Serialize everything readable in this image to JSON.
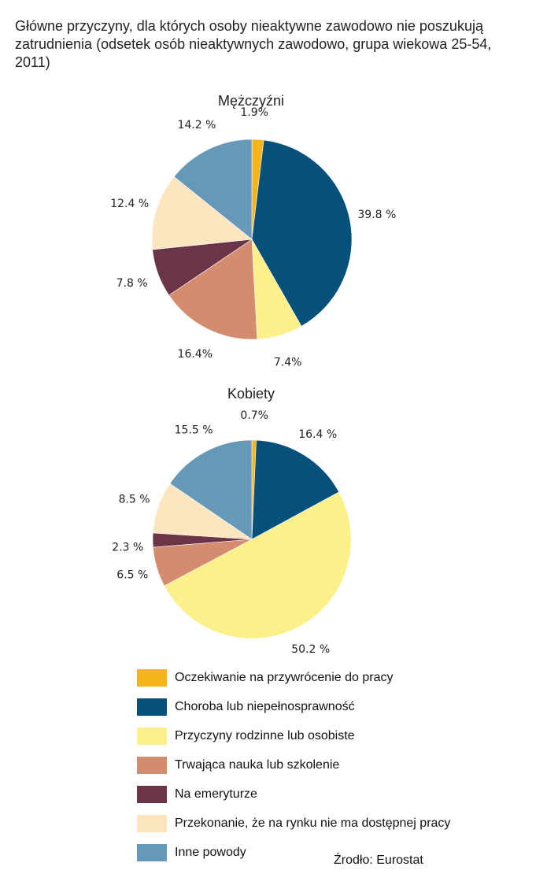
{
  "title": "Główne przyczyny, dla których osoby nieaktywne zawodowo nie poszukują zatrudnienia (odsetek osób nieaktywnych zawodowo, grupa wiekowa 25-54, 2011)",
  "source": "Źrodło: Eurostat",
  "chart_data": [
    {
      "type": "pie",
      "title": "Mężczyźni",
      "categories": [
        "Oczekiwanie na przywrócenie do pracy",
        "Choroba lub niepełnosprawność",
        "Przyczyny rodzinne lub osobiste",
        "Trwająca nauka lub szkolenie",
        "Na emeryturze",
        "Przekonanie, że na rynku nie ma dostępnej pracy",
        "Inne powody"
      ],
      "values": [
        1.9,
        39.8,
        7.4,
        16.4,
        7.8,
        12.4,
        14.2
      ],
      "labels": [
        "1.9%",
        "39.8 %",
        "7.4%",
        "16.4%",
        "7.8 %",
        "12.4 %",
        "14.2 %"
      ]
    },
    {
      "type": "pie",
      "title": "Kobiety",
      "categories": [
        "Oczekiwanie na przywrócenie do pracy",
        "Choroba lub niepełnosprawność",
        "Przyczyny rodzinne lub osobiste",
        "Trwająca nauka lub szkolenie",
        "Na emeryturze",
        "Przekonanie, że na rynku nie ma dostępnej pracy",
        "Inne powody"
      ],
      "values": [
        0.7,
        16.4,
        50.2,
        6.5,
        2.3,
        8.5,
        15.5
      ],
      "labels": [
        "0.7%",
        "16.4 %",
        "50.2 %",
        "6.5 %",
        "2.3 %",
        "8.5 %",
        "15.5 %"
      ]
    }
  ],
  "legend": [
    {
      "label": "Oczekiwanie na przywrócenie do pracy",
      "color": "#f5b41c"
    },
    {
      "label": "Choroba lub niepełnosprawność",
      "color": "#07507a"
    },
    {
      "label": "Przyczyny rodzinne lub osobiste",
      "color": "#fbf08a"
    },
    {
      "label": "Trwająca nauka lub szkolenie",
      "color": "#d48c6e"
    },
    {
      "label": "Na emeryturze",
      "color": "#6c3447"
    },
    {
      "label": "Przekonanie, że na rynku nie ma dostępnej pracy",
      "color": "#fde5bf"
    },
    {
      "label": "Inne powody",
      "color": "#6699b8"
    }
  ]
}
